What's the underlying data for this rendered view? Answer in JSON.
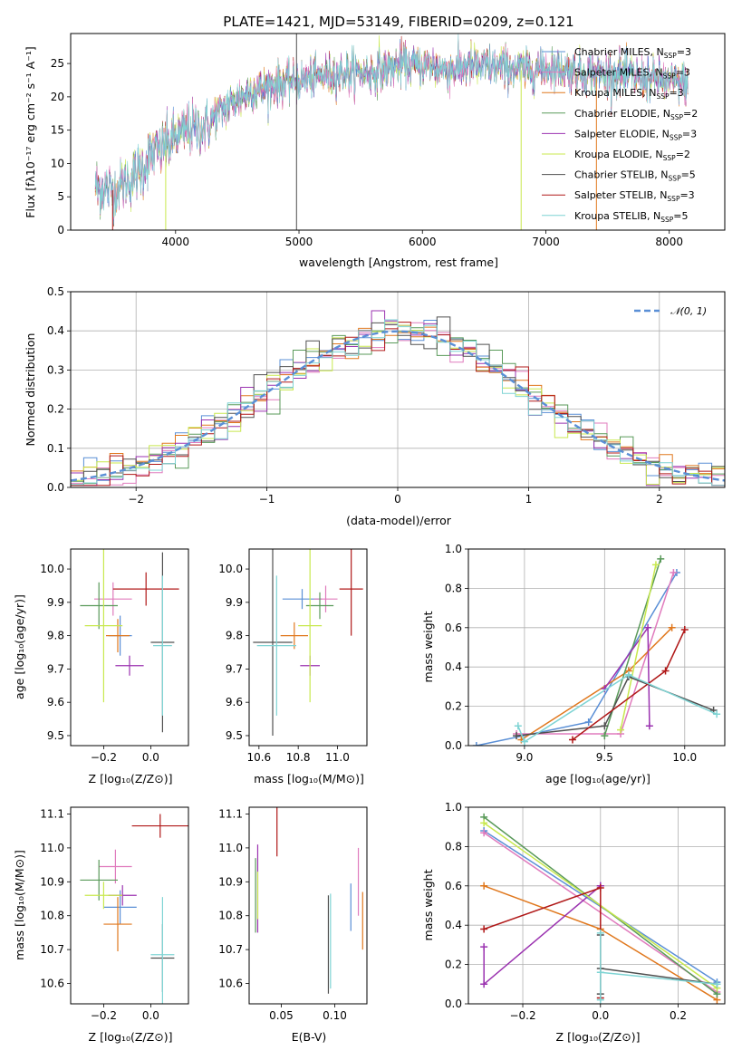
{
  "colors": {
    "Chabrier MILES": "#5a8fd6",
    "Salpeter MILES": "#e07bbd",
    "Kroupa MILES": "#e0781e",
    "Chabrier ELODIE": "#5a9a5a",
    "Salpeter ELODIE": "#9b33b0",
    "Kroupa ELODIE": "#c8e84e",
    "Chabrier STELIB": "#505050",
    "Salpeter STELIB": "#b01818",
    "Kroupa STELIB": "#7fd4d4"
  },
  "chart_data": [
    {
      "id": "spectrum",
      "type": "line",
      "title": "PLATE=1421, MJD=53149, FIBERID=0209, z=0.121",
      "xlabel": "wavelength [Angstrom, rest frame]",
      "ylabel": "Flux [fλ10⁻¹⁷ erg cm⁻² s⁻¹ A⁻¹]",
      "xlim": [
        3150,
        8450
      ],
      "ylim": [
        0,
        29.5
      ],
      "xticks": [
        4000,
        5000,
        6000,
        7000,
        8000
      ],
      "yticks": [
        0,
        5,
        10,
        15,
        20,
        25
      ],
      "legend_position": "top-right",
      "legend": [
        {
          "model": "Chabrier MILES",
          "label": "Chabrier MILES, N",
          "sub": "SSP",
          "n": "=3"
        },
        {
          "model": "Salpeter MILES",
          "label": "Salpeter MILES, N",
          "sub": "SSP",
          "n": "=3"
        },
        {
          "model": "Kroupa MILES",
          "label": "Kroupa MILES, N",
          "sub": "SSP",
          "n": "=3"
        },
        {
          "model": "Chabrier ELODIE",
          "label": "Chabrier ELODIE, N",
          "sub": "SSP",
          "n": "=2"
        },
        {
          "model": "Salpeter ELODIE",
          "label": "Salpeter ELODIE, N",
          "sub": "SSP",
          "n": "=3"
        },
        {
          "model": "Kroupa ELODIE",
          "label": "Kroupa ELODIE, N",
          "sub": "SSP",
          "n": "=2"
        },
        {
          "model": "Chabrier STELIB",
          "label": "Chabrier STELIB, N",
          "sub": "SSP",
          "n": "=5"
        },
        {
          "model": "Salpeter STELIB",
          "label": "Salpeter STELIB, N",
          "sub": "SSP",
          "n": "=3"
        },
        {
          "model": "Kroupa STELIB",
          "label": "Kroupa STELIB, N",
          "sub": "SSP",
          "n": "=5"
        }
      ],
      "continuum": [
        [
          3350,
          6.6
        ],
        [
          3500,
          6.0
        ],
        [
          3650,
          7.8
        ],
        [
          3800,
          11.0
        ],
        [
          3950,
          13.2
        ],
        [
          4100,
          15.0
        ],
        [
          4250,
          15.6
        ],
        [
          4400,
          18.5
        ],
        [
          4600,
          20.8
        ],
        [
          4800,
          21.8
        ],
        [
          5000,
          22.5
        ],
        [
          5200,
          23.3
        ],
        [
          5400,
          23.6
        ],
        [
          5600,
          23.6
        ],
        [
          5800,
          24.6
        ],
        [
          6000,
          24.7
        ],
        [
          6200,
          24.1
        ],
        [
          6400,
          24.6
        ],
        [
          6600,
          24.4
        ],
        [
          6800,
          24.1
        ],
        [
          7000,
          24.4
        ],
        [
          7200,
          23.9
        ],
        [
          7400,
          23.4
        ],
        [
          7600,
          23.3
        ],
        [
          7800,
          22.8
        ],
        [
          8000,
          22.3
        ],
        [
          8150,
          22.1
        ]
      ],
      "spikes": [
        {
          "model": "Chabrier STELIB",
          "x": 4980,
          "y": [
            0,
            29.5
          ]
        },
        {
          "model": "Salpeter STELIB",
          "x": 3490,
          "y": [
            0,
            6
          ]
        },
        {
          "model": "Kroupa ELODIE",
          "x": 3920,
          "y": [
            0,
            12
          ]
        },
        {
          "model": "Kroupa ELODIE",
          "x": 6800,
          "y": [
            0,
            24
          ]
        },
        {
          "model": "Kroupa MILES",
          "x": 7410,
          "y": [
            0,
            23
          ]
        }
      ]
    },
    {
      "id": "residuals",
      "type": "histogram",
      "xlabel": "(data-model)/error",
      "ylabel": "Normed distribution",
      "xlim": [
        -2.5,
        2.5
      ],
      "ylim": [
        0,
        0.5
      ],
      "xticks": [
        -2,
        -1,
        0,
        1,
        2
      ],
      "yticks": [
        0,
        0.1,
        0.2,
        0.3,
        0.4,
        0.5
      ],
      "bin_width": 0.1,
      "legend": "𝒩(0, 1)",
      "legend_position": "top-right",
      "curve_color": "#5a8fd6",
      "grid": true
    },
    {
      "id": "age-vs-Z",
      "type": "errorbar",
      "xlabel": "Z [log₁₀(Z/Z⊙)]",
      "ylabel": "age  [log₁₀(age/yr)]",
      "xlim": [
        -0.34,
        0.16
      ],
      "ylim": [
        9.47,
        10.06
      ],
      "xticks": [
        -0.2,
        0.0
      ],
      "yticks": [
        9.5,
        9.6,
        9.7,
        9.8,
        9.9,
        10.0
      ],
      "points": [
        {
          "model": "Chabrier MILES",
          "x": -0.13,
          "y": 9.8,
          "xerr": 0.05,
          "yerr": 0.06
        },
        {
          "model": "Salpeter MILES",
          "x": -0.16,
          "y": 9.91,
          "xerr": 0.08,
          "yerr": 0.05
        },
        {
          "model": "Kroupa MILES",
          "x": -0.14,
          "y": 9.8,
          "xerr": 0.05,
          "yerr": 0.05
        },
        {
          "model": "Chabrier ELODIE",
          "x": -0.22,
          "y": 9.89,
          "xerr": 0.08,
          "yerr": 0.07
        },
        {
          "model": "Salpeter ELODIE",
          "x": -0.09,
          "y": 9.71,
          "xerr": 0.06,
          "yerr": 0.03
        },
        {
          "model": "Kroupa ELODIE",
          "x": -0.2,
          "y": 9.83,
          "xerr": 0.08,
          "yerr": 0.23
        },
        {
          "model": "Chabrier STELIB",
          "x": 0.05,
          "y": 9.78,
          "xerr": 0.05,
          "yerr": 0.27
        },
        {
          "model": "Salpeter STELIB",
          "x": -0.02,
          "y": 9.94,
          "xerr": 0.14,
          "yerr": 0.05
        },
        {
          "model": "Kroupa STELIB",
          "x": 0.05,
          "y": 9.77,
          "xerr": 0.04,
          "yerr": 0.21
        }
      ]
    },
    {
      "id": "age-vs-mass",
      "type": "errorbar",
      "xlabel": "mass [log₁₀(M/M⊙)]",
      "ylabel": "",
      "xlim": [
        10.55,
        11.15
      ],
      "ylim": [
        9.47,
        10.06
      ],
      "xticks": [
        10.6,
        10.8,
        11.0
      ],
      "yticks": [
        9.5,
        9.6,
        9.7,
        9.8,
        9.9,
        10.0
      ],
      "points": [
        {
          "model": "Chabrier MILES",
          "x": 10.82,
          "y": 9.91,
          "xerr": 0.1,
          "yerr": 0.03
        },
        {
          "model": "Salpeter MILES",
          "x": 10.94,
          "y": 9.91,
          "xerr": 0.06,
          "yerr": 0.04
        },
        {
          "model": "Kroupa MILES",
          "x": 10.78,
          "y": 9.8,
          "xerr": 0.07,
          "yerr": 0.04
        },
        {
          "model": "Chabrier ELODIE",
          "x": 10.91,
          "y": 9.89,
          "xerr": 0.07,
          "yerr": 0.04
        },
        {
          "model": "Salpeter ELODIE",
          "x": 10.86,
          "y": 9.71,
          "xerr": 0.05,
          "yerr": 0.03
        },
        {
          "model": "Kroupa ELODIE",
          "x": 10.86,
          "y": 9.83,
          "xerr": 0.06,
          "yerr": 0.23
        },
        {
          "model": "Chabrier STELIB",
          "x": 10.67,
          "y": 9.78,
          "xerr": 0.1,
          "yerr": 0.28
        },
        {
          "model": "Salpeter STELIB",
          "x": 11.07,
          "y": 9.94,
          "xerr": 0.06,
          "yerr": 0.14
        },
        {
          "model": "Kroupa STELIB",
          "x": 10.69,
          "y": 9.77,
          "xerr": 0.1,
          "yerr": 0.21
        }
      ]
    },
    {
      "id": "weight-vs-age",
      "type": "line",
      "xlabel": "age  [log₁₀(age/yr)]",
      "ylabel": "mass weight",
      "xlim": [
        8.65,
        10.25
      ],
      "ylim": [
        0,
        1
      ],
      "xticks": [
        9.0,
        9.5,
        10.0
      ],
      "yticks": [
        0,
        0.2,
        0.4,
        0.6,
        0.8,
        1.0
      ],
      "grid": true,
      "series": [
        {
          "model": "Chabrier MILES",
          "x": [
            8.7,
            9.4,
            9.95
          ],
          "y": [
            0.0,
            0.12,
            0.88
          ]
        },
        {
          "model": "Salpeter MILES",
          "x": [
            8.95,
            9.6,
            9.93
          ],
          "y": [
            0.06,
            0.06,
            0.88
          ]
        },
        {
          "model": "Kroupa MILES",
          "x": [
            8.98,
            9.65,
            9.92
          ],
          "y": [
            0.03,
            0.38,
            0.6
          ]
        },
        {
          "model": "Chabrier ELODIE",
          "x": [
            9.5,
            9.85
          ],
          "y": [
            0.05,
            0.95
          ]
        },
        {
          "model": "Salpeter ELODIE",
          "x": [
            9.5,
            9.77,
            9.78
          ],
          "y": [
            0.29,
            0.6,
            0.1
          ]
        },
        {
          "model": "Kroupa ELODIE",
          "x": [
            9.6,
            9.82
          ],
          "y": [
            0.08,
            0.92
          ]
        },
        {
          "model": "Chabrier STELIB",
          "x": [
            8.95,
            9.5,
            9.65,
            10.18
          ],
          "y": [
            0.05,
            0.1,
            0.35,
            0.18
          ]
        },
        {
          "model": "Salpeter STELIB",
          "x": [
            9.3,
            9.88,
            10.0
          ],
          "y": [
            0.03,
            0.38,
            0.59
          ]
        },
        {
          "model": "Kroupa STELIB",
          "x": [
            8.96,
            9.0,
            9.65,
            10.2
          ],
          "y": [
            0.1,
            0.02,
            0.36,
            0.16
          ]
        }
      ]
    },
    {
      "id": "mass-vs-Z",
      "type": "errorbar",
      "xlabel": "Z [log₁₀(Z/Z⊙)]",
      "ylabel": "mass [log₁₀(M/M⊙)]",
      "xlim": [
        -0.34,
        0.16
      ],
      "ylim": [
        10.54,
        11.12
      ],
      "xticks": [
        -0.2,
        0.0
      ],
      "yticks": [
        10.6,
        10.7,
        10.8,
        10.9,
        11.0,
        11.1
      ],
      "points": [
        {
          "model": "Chabrier MILES",
          "x": -0.13,
          "y": 10.825,
          "xerr": 0.07,
          "yerr": 0.05
        },
        {
          "model": "Salpeter MILES",
          "x": -0.15,
          "y": 10.945,
          "xerr": 0.07,
          "yerr": 0.05
        },
        {
          "model": "Kroupa MILES",
          "x": -0.14,
          "y": 10.775,
          "xerr": 0.06,
          "yerr": 0.08
        },
        {
          "model": "Chabrier ELODIE",
          "x": -0.22,
          "y": 10.905,
          "xerr": 0.08,
          "yerr": 0.06
        },
        {
          "model": "Salpeter ELODIE",
          "x": -0.12,
          "y": 10.86,
          "xerr": 0.06,
          "yerr": 0.03
        },
        {
          "model": "Kroupa ELODIE",
          "x": -0.2,
          "y": 10.86,
          "xerr": 0.08,
          "yerr": 0.04
        },
        {
          "model": "Chabrier STELIB",
          "x": 0.05,
          "y": 10.675,
          "xerr": 0.05,
          "yerr": 0.1
        },
        {
          "model": "Salpeter STELIB",
          "x": 0.04,
          "y": 11.065,
          "xerr": 0.12,
          "yerr": 0.035
        },
        {
          "model": "Kroupa STELIB",
          "x": 0.05,
          "y": 10.685,
          "xerr": 0.05,
          "yerr": 0.17
        }
      ]
    },
    {
      "id": "mass-vs-EBV",
      "type": "errorbar",
      "xlabel": "E(B-V)",
      "ylabel": "",
      "xlim": [
        0.02,
        0.13
      ],
      "ylim": [
        10.54,
        11.12
      ],
      "xticks": [
        0.05,
        0.1
      ],
      "yticks": [
        10.6,
        10.7,
        10.8,
        10.9,
        11.0,
        11.1
      ],
      "points": [
        {
          "model": "Chabrier MILES",
          "x": 0.115,
          "y": 10.825,
          "xerr": 0,
          "yerr": 0.07
        },
        {
          "model": "Salpeter MILES",
          "x": 0.122,
          "y": 10.9,
          "xerr": 0,
          "yerr": 0.1
        },
        {
          "model": "Kroupa MILES",
          "x": 0.126,
          "y": 10.785,
          "xerr": 0,
          "yerr": 0.085
        },
        {
          "model": "Chabrier ELODIE",
          "x": 0.026,
          "y": 10.86,
          "xerr": 0,
          "yerr": 0.11
        },
        {
          "model": "Salpeter ELODIE",
          "x": 0.028,
          "y": 10.88,
          "xerr": 0,
          "yerr": 0.13
        },
        {
          "model": "Kroupa ELODIE",
          "x": 0.028,
          "y": 10.86,
          "xerr": 0,
          "yerr": 0.07
        },
        {
          "model": "Chabrier STELIB",
          "x": 0.094,
          "y": 10.715,
          "xerr": 0,
          "yerr": 0.145
        },
        {
          "model": "Salpeter STELIB",
          "x": 0.046,
          "y": 11.05,
          "xerr": 0,
          "yerr": 0.075
        },
        {
          "model": "Kroupa STELIB",
          "x": 0.096,
          "y": 10.725,
          "xerr": 0,
          "yerr": 0.14
        }
      ]
    },
    {
      "id": "weight-vs-Z",
      "type": "line",
      "xlabel": "Z [log₁₀(Z/Z⊙)]",
      "ylabel": "mass weight",
      "xlim": [
        -0.34,
        0.32
      ],
      "ylim": [
        0,
        1
      ],
      "xticks": [
        -0.2,
        0.0,
        0.2
      ],
      "yticks": [
        0,
        0.2,
        0.4,
        0.6,
        0.8,
        1.0
      ],
      "grid": true,
      "series": [
        {
          "model": "Chabrier MILES",
          "x": [
            -0.3,
            0.3
          ],
          "y": [
            0.88,
            0.11
          ]
        },
        {
          "model": "Salpeter MILES",
          "x": [
            -0.3,
            0.3
          ],
          "y": [
            0.87,
            0.06
          ]
        },
        {
          "model": "Kroupa MILES",
          "x": [
            -0.3,
            0.0,
            0.3
          ],
          "y": [
            0.6,
            0.38,
            0.02
          ]
        },
        {
          "model": "Chabrier ELODIE",
          "x": [
            -0.3,
            0.3
          ],
          "y": [
            0.95,
            0.05
          ]
        },
        {
          "model": "Salpeter ELODIE",
          "x": [
            -0.3,
            -0.3,
            0.0,
            0.0
          ],
          "y": [
            0.29,
            0.1,
            0.6,
            0.6
          ]
        },
        {
          "model": "Kroupa ELODIE",
          "x": [
            -0.3,
            0.3
          ],
          "y": [
            0.92,
            0.08
          ]
        },
        {
          "model": "Chabrier STELIB",
          "x": [
            0.0,
            0.0,
            0.0,
            0.3
          ],
          "y": [
            0.05,
            0.35,
            0.18,
            0.1
          ]
        },
        {
          "model": "Salpeter STELIB",
          "x": [
            -0.3,
            0.0,
            0.0
          ],
          "y": [
            0.38,
            0.59,
            0.03
          ]
        },
        {
          "model": "Kroupa STELIB",
          "x": [
            0.0,
            0.0,
            0.0,
            0.3
          ],
          "y": [
            0.02,
            0.36,
            0.16,
            0.1
          ]
        }
      ]
    }
  ]
}
